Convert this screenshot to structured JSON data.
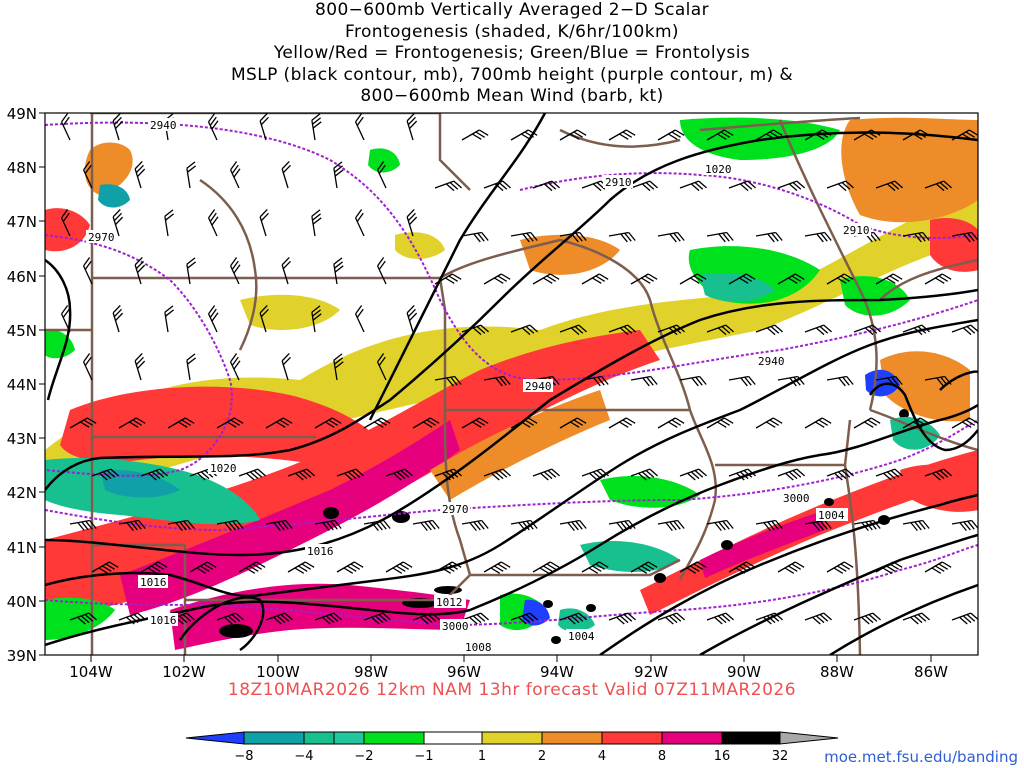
{
  "title_lines": [
    "800−600mb Vertically Averaged 2−D Scalar",
    "Frontogenesis (shaded, K/6hr/100km)",
    "Yellow/Red = Frontogenesis;  Green/Blue = Frontolysis",
    "MSLP (black contour, mb), 700mb height (purple contour, m) &",
    "800−600mb Mean Wind (barb, kt)"
  ],
  "forecast_label": "18Z10MAR2026 12km NAM 13hr forecast Valid 07Z11MAR2026",
  "credit": "moe.met.fsu.edu/banding",
  "axes": {
    "lon_labels": [
      "104W",
      "102W",
      "100W",
      "98W",
      "96W",
      "94W",
      "92W",
      "90W",
      "88W",
      "86W"
    ],
    "lat_labels": [
      "49N",
      "48N",
      "47N",
      "46N",
      "45N",
      "44N",
      "43N",
      "42N",
      "41N",
      "40N",
      "39N"
    ]
  },
  "colorbar": {
    "tick_labels": [
      "−8",
      "−4",
      "−2",
      "−1",
      "1",
      "2",
      "4",
      "8",
      "16",
      "32"
    ],
    "colors": [
      "#1f3fff",
      "#0fa0a8",
      "#18c090",
      "#22c7a0",
      "#00e11e",
      "#ffffff",
      "#e0d22a",
      "#ee8c2a",
      "#ff3838",
      "#e6007e",
      "#000000",
      "#a8a8a8"
    ]
  },
  "contour_labels": {
    "mslp": [
      "1020",
      "1020",
      "1016",
      "1016",
      "1016",
      "1012",
      "1008",
      "1004",
      "1004"
    ],
    "height_700mb": [
      "2940",
      "2910",
      "2910",
      "2970",
      "2940",
      "2940",
      "2970",
      "3000",
      "3000"
    ]
  },
  "colors": {
    "mslp": "#000000",
    "height_700mb": "#a020d0",
    "boundaries": "#7d5e4e",
    "forecast_label": "#ef5050",
    "credit": "#2c5fd6"
  }
}
